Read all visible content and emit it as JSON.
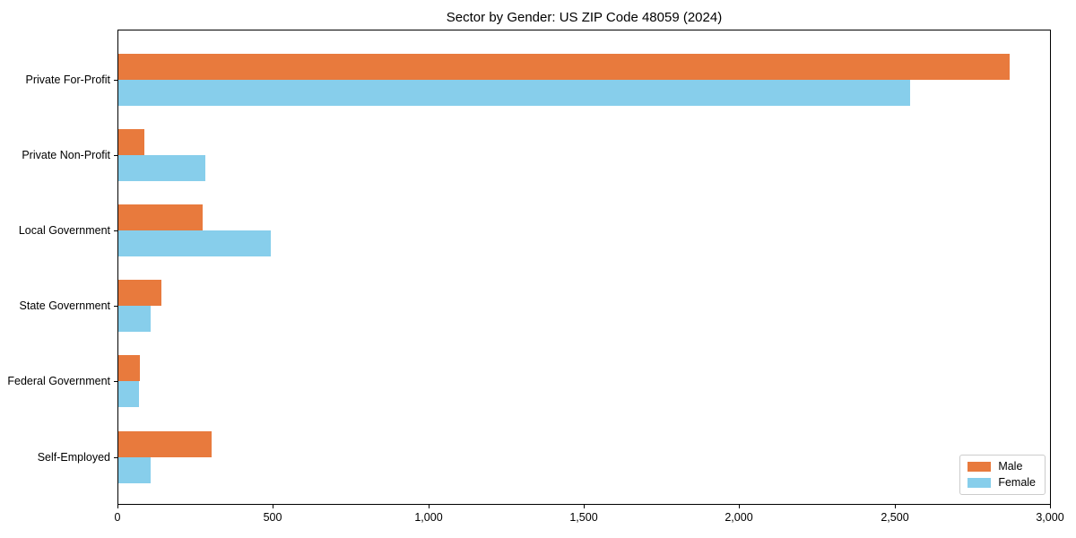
{
  "chart_data": {
    "type": "bar",
    "orientation": "horizontal",
    "title": "Sector by Gender: US ZIP Code 48059 (2024)",
    "categories": [
      "Private For-Profit",
      "Private Non-Profit",
      "Local Government",
      "State Government",
      "Federal Government",
      "Self-Employed"
    ],
    "series": [
      {
        "name": "Male",
        "color": "#E87A3D",
        "values": [
          2870,
          85,
          270,
          140,
          70,
          300
        ]
      },
      {
        "name": "Female",
        "color": "#87CEEB",
        "values": [
          2550,
          280,
          490,
          105,
          65,
          105
        ]
      }
    ],
    "xlim": [
      0,
      3000
    ],
    "x_ticks": [
      0,
      500,
      1000,
      1500,
      2000,
      2500,
      3000
    ],
    "x_tick_labels": [
      "0",
      "500",
      "1,000",
      "1,500",
      "2,000",
      "2,500",
      "3,000"
    ],
    "xlabel": "",
    "ylabel": "",
    "grid": false,
    "legend_position": "lower right"
  },
  "legend": {
    "items": [
      {
        "label": "Male",
        "color": "#E87A3D"
      },
      {
        "label": "Female",
        "color": "#87CEEB"
      }
    ]
  }
}
